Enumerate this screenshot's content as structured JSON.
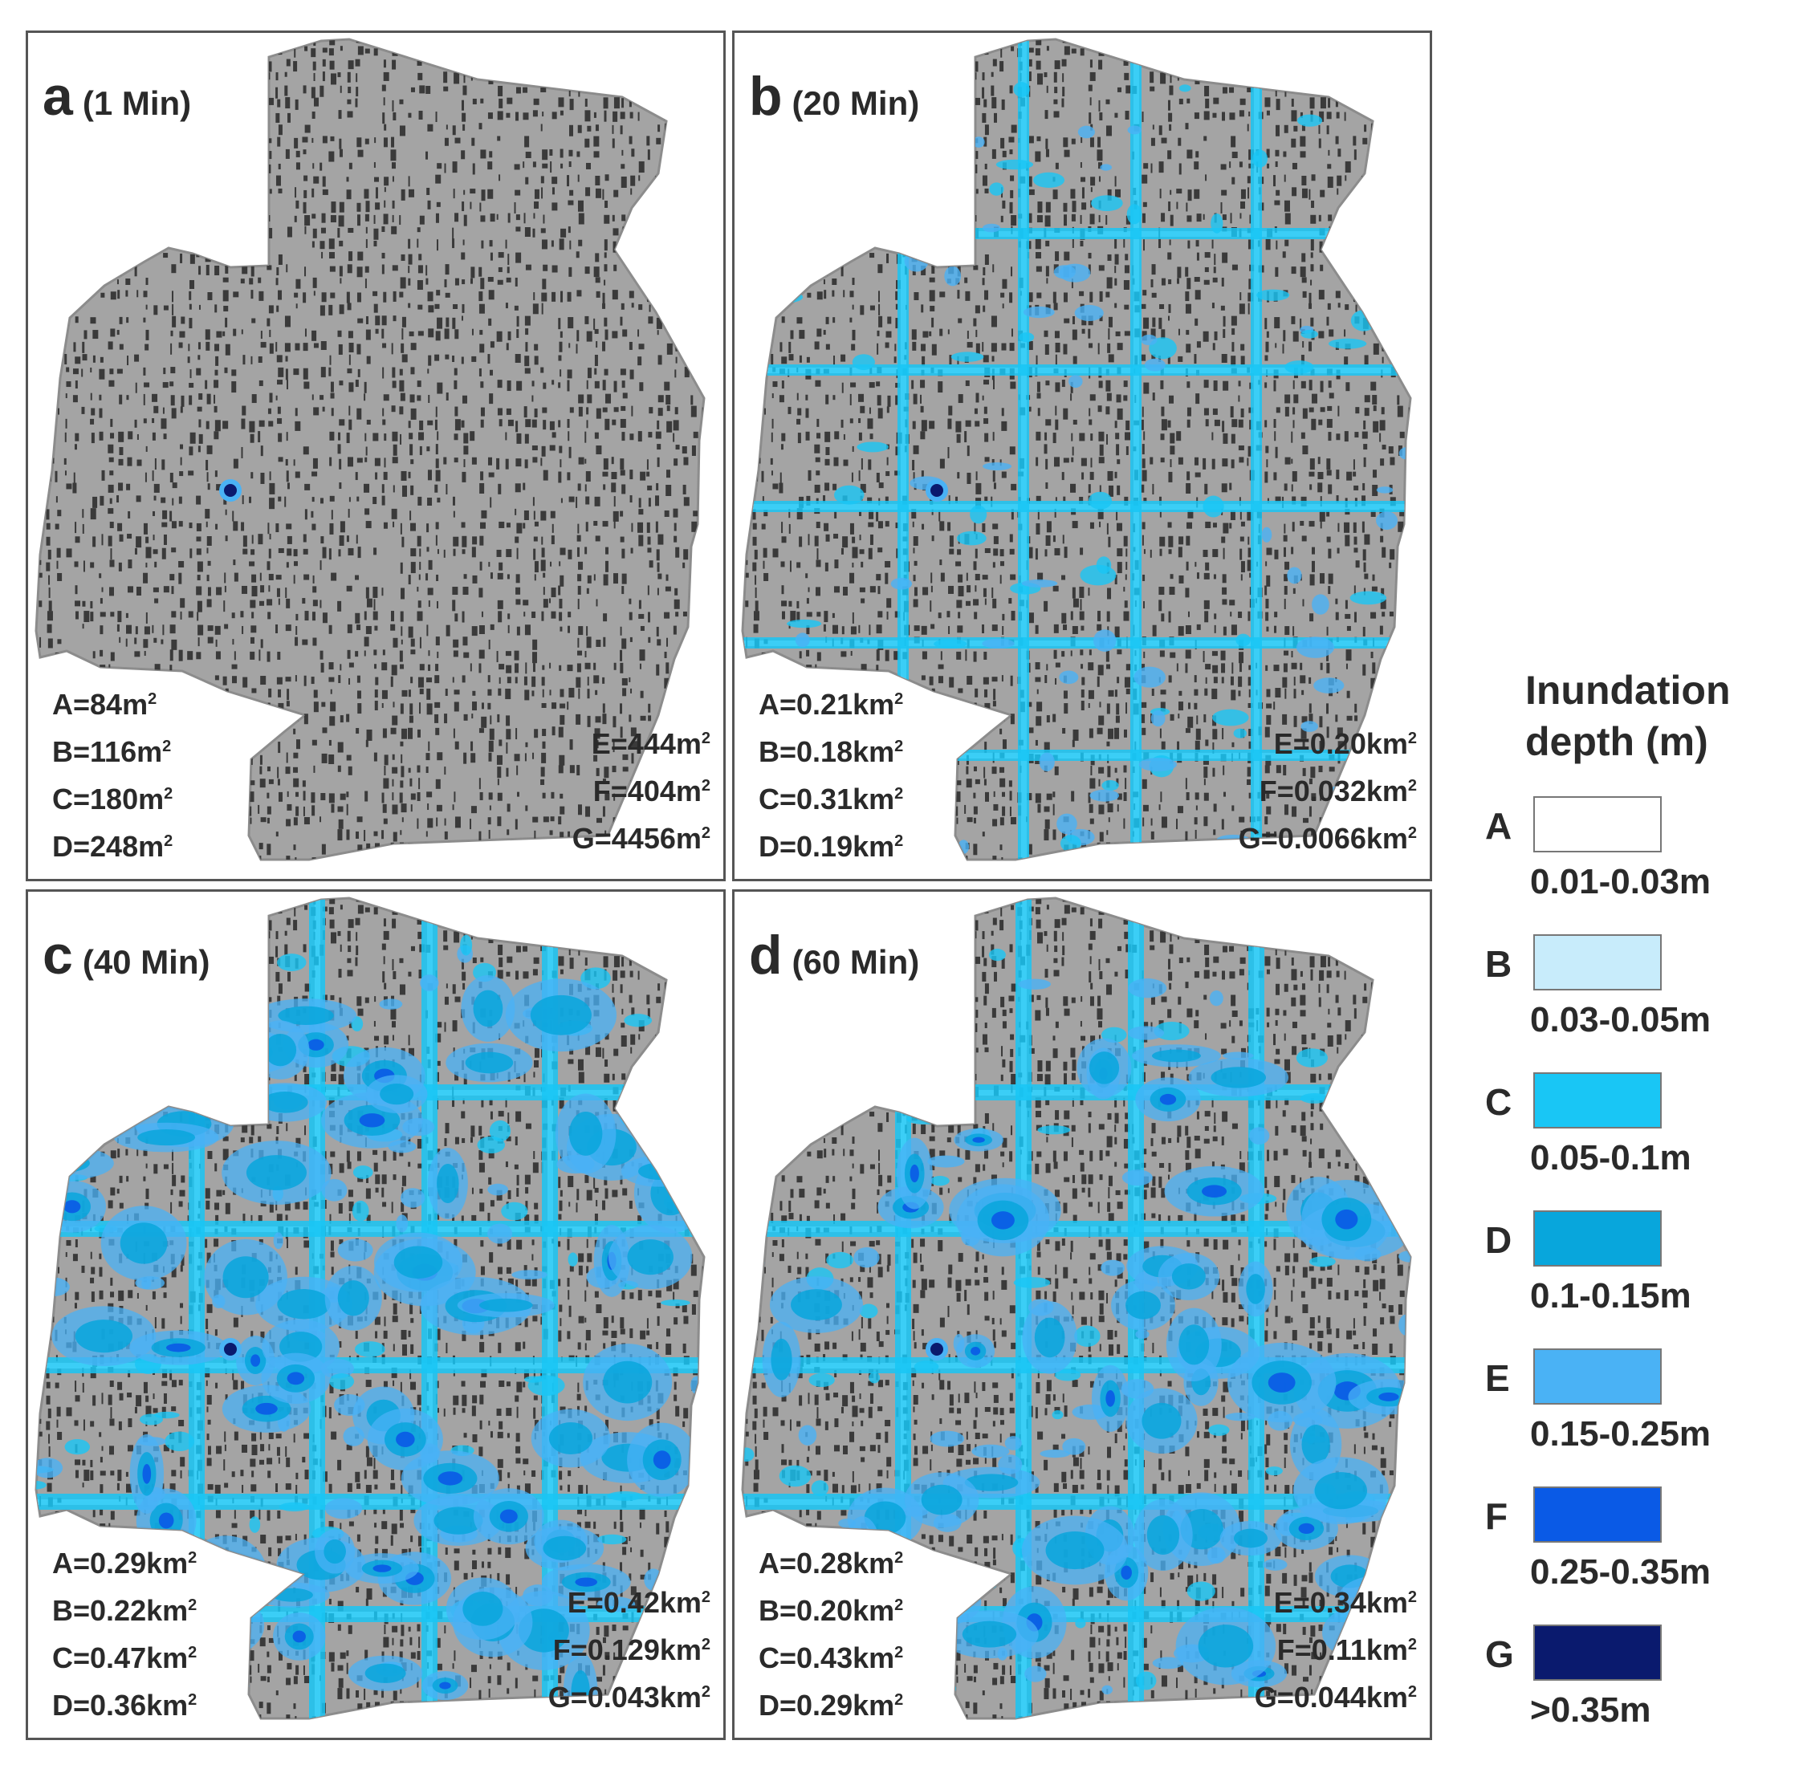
{
  "colors": {
    "base": "#a4a4a4",
    "building": "#3a3a3a",
    "road": "#ffffff"
  },
  "panels": [
    {
      "letter": "a",
      "time": "(1 Min)",
      "flood_level": 0,
      "left_stats": [
        {
          "label": "A=84m",
          "sup": "2"
        },
        {
          "label": "B=116m",
          "sup": "2"
        },
        {
          "label": "C=180m",
          "sup": "2"
        },
        {
          "label": "D=248m",
          "sup": "2"
        }
      ],
      "right_stats": [
        {
          "label": "E=444m",
          "sup": "2"
        },
        {
          "label": "F=404m",
          "sup": "2"
        },
        {
          "label": "G=4456m",
          "sup": "2"
        }
      ]
    },
    {
      "letter": "b",
      "time": "(20 Min)",
      "flood_level": 1,
      "left_stats": [
        {
          "label": "A=0.21km",
          "sup": "2"
        },
        {
          "label": "B=0.18km",
          "sup": "2"
        },
        {
          "label": "C=0.31km",
          "sup": "2"
        },
        {
          "label": "D=0.19km",
          "sup": "2"
        }
      ],
      "right_stats": [
        {
          "label": "E=0.20km",
          "sup": "2"
        },
        {
          "label": "F=0.032km",
          "sup": "2"
        },
        {
          "label": "G=0.0066km",
          "sup": "2"
        }
      ]
    },
    {
      "letter": "c",
      "time": "(40 Min)",
      "flood_level": 3,
      "left_stats": [
        {
          "label": "A=0.29km",
          "sup": "2"
        },
        {
          "label": "B=0.22km",
          "sup": "2"
        },
        {
          "label": "C=0.47km",
          "sup": "2"
        },
        {
          "label": "D=0.36km",
          "sup": "2"
        }
      ],
      "right_stats": [
        {
          "label": "E=0.42km",
          "sup": "2"
        },
        {
          "label": "F=0.129km",
          "sup": "2"
        },
        {
          "label": "G=0.043km",
          "sup": "2"
        }
      ]
    },
    {
      "letter": "d",
      "time": "(60 Min)",
      "flood_level": 2,
      "left_stats": [
        {
          "label": "A=0.28km",
          "sup": "2"
        },
        {
          "label": "B=0.20km",
          "sup": "2"
        },
        {
          "label": "C=0.43km",
          "sup": "2"
        },
        {
          "label": "D=0.29km",
          "sup": "2"
        }
      ],
      "right_stats": [
        {
          "label": "E=0.34km",
          "sup": "2"
        },
        {
          "label": "F=0.11km",
          "sup": "2"
        },
        {
          "label": "G=0.044km",
          "sup": "2"
        }
      ]
    }
  ],
  "legend": {
    "title_line1": "Inundation",
    "title_line2": "depth (m)",
    "items": [
      {
        "letter": "A",
        "range": "0.01-0.03m",
        "color": "#ffffff"
      },
      {
        "letter": "B",
        "range": "0.03-0.05m",
        "color": "#c8ecfb"
      },
      {
        "letter": "C",
        "range": "0.05-0.1m",
        "color": "#19c6f5"
      },
      {
        "letter": "D",
        "range": "0.1-0.15m",
        "color": "#08a6dc"
      },
      {
        "letter": "E",
        "range": "0.15-0.25m",
        "color": "#4ab2f5"
      },
      {
        "letter": "F",
        "range": "0.25-0.35m",
        "color": "#0a5ae6"
      },
      {
        "letter": "G",
        "range": ">0.35m",
        "color": "#0a1a6e"
      }
    ]
  }
}
